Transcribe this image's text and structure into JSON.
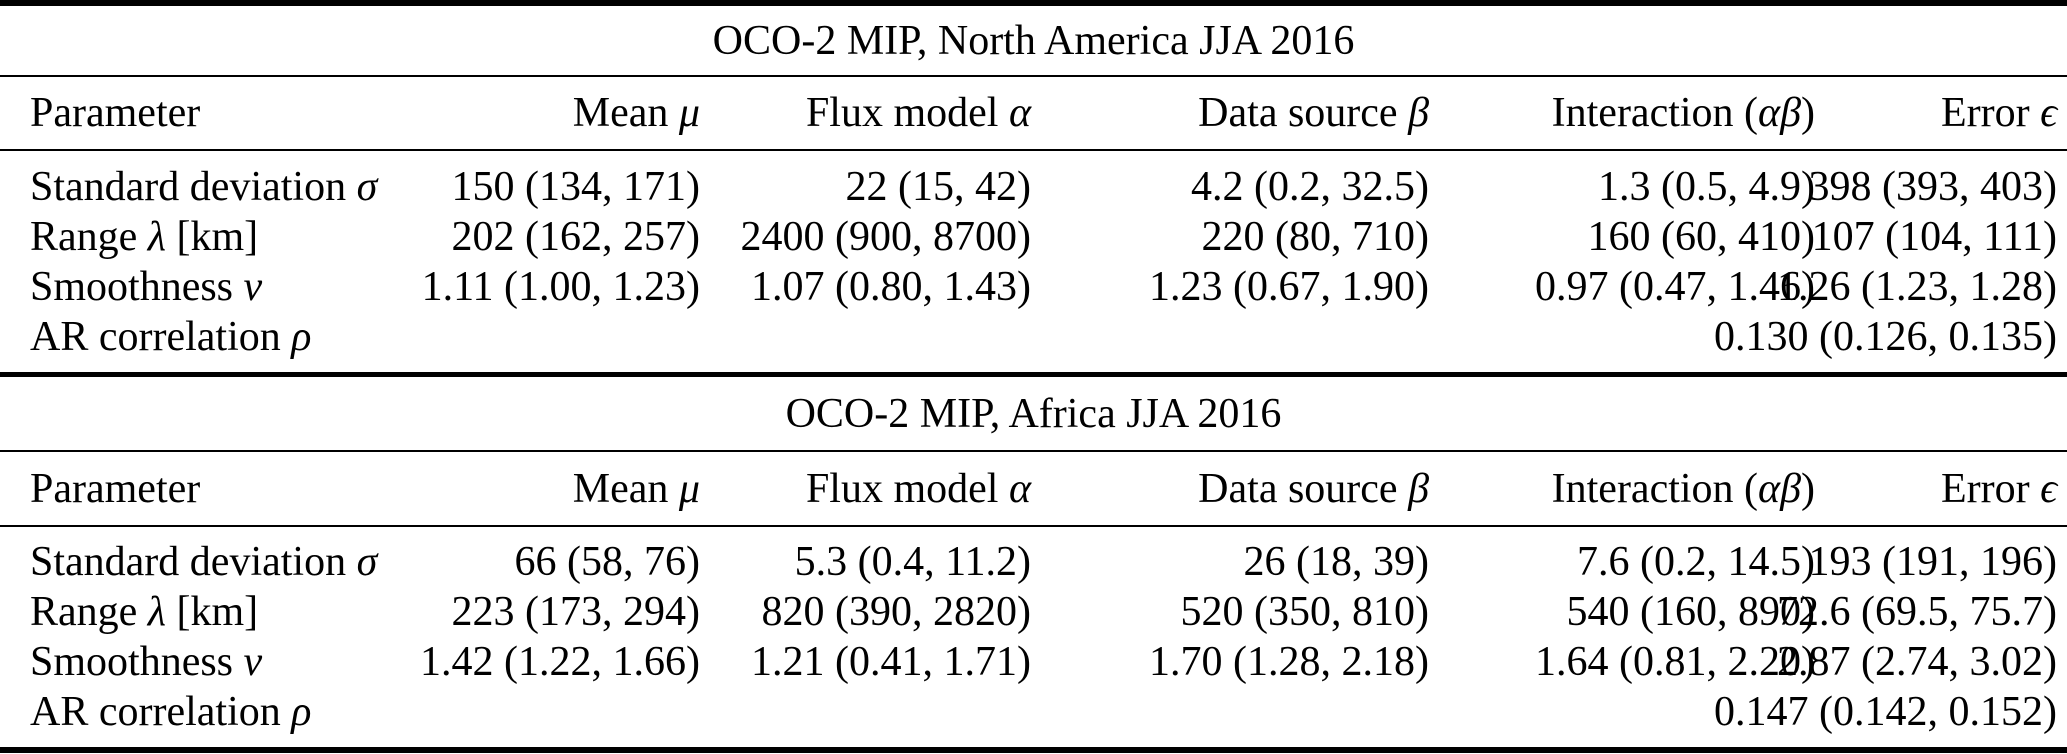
{
  "tables": [
    {
      "title": "OCO-2 MIP, North America JJA 2016",
      "columns": [
        {
          "pre": "Parameter",
          "sym": "",
          "post": ""
        },
        {
          "pre": "Mean ",
          "sym": "μ",
          "post": ""
        },
        {
          "pre": "Flux model ",
          "sym": "α",
          "post": ""
        },
        {
          "pre": "Data source ",
          "sym": "β",
          "post": ""
        },
        {
          "pre": "Interaction (",
          "sym": "αβ",
          "post": ")"
        },
        {
          "pre": "Error ",
          "sym": "ϵ",
          "post": ""
        }
      ],
      "rows": [
        {
          "label": {
            "pre": "Standard deviation ",
            "sym": "σ",
            "post": ""
          },
          "values": [
            "150 (134, 171)",
            "22 (15, 42)",
            "4.2 (0.2, 32.5)",
            "1.3 (0.5, 4.9)",
            "398 (393, 403)"
          ]
        },
        {
          "label": {
            "pre": "Range ",
            "sym": "λ",
            "post": " [km]"
          },
          "values": [
            "202 (162, 257)",
            "2400 (900, 8700)",
            "220 (80, 710)",
            "160 (60, 410)",
            "107 (104, 111)"
          ]
        },
        {
          "label": {
            "pre": "Smoothness ",
            "sym": "ν",
            "post": ""
          },
          "values": [
            "1.11 (1.00, 1.23)",
            "1.07 (0.80, 1.43)",
            "1.23 (0.67, 1.90)",
            "0.97 (0.47, 1.46)",
            "1.26 (1.23, 1.28)"
          ]
        },
        {
          "label": {
            "pre": "AR correlation ",
            "sym": "ρ",
            "post": ""
          },
          "values": [
            "",
            "",
            "",
            "",
            "0.130 (0.126, 0.135)"
          ]
        }
      ]
    },
    {
      "title": "OCO-2 MIP, Africa JJA 2016",
      "columns": [
        {
          "pre": "Parameter",
          "sym": "",
          "post": ""
        },
        {
          "pre": "Mean ",
          "sym": "μ",
          "post": ""
        },
        {
          "pre": "Flux model ",
          "sym": "α",
          "post": ""
        },
        {
          "pre": "Data source ",
          "sym": "β",
          "post": ""
        },
        {
          "pre": "Interaction (",
          "sym": "αβ",
          "post": ")"
        },
        {
          "pre": "Error ",
          "sym": "ϵ",
          "post": ""
        }
      ],
      "rows": [
        {
          "label": {
            "pre": "Standard deviation ",
            "sym": "σ",
            "post": ""
          },
          "values": [
            "66 (58, 76)",
            "5.3 (0.4, 11.2)",
            "26 (18, 39)",
            "7.6 (0.2, 14.5)",
            "193 (191, 196)"
          ]
        },
        {
          "label": {
            "pre": "Range ",
            "sym": "λ",
            "post": " [km]"
          },
          "values": [
            "223 (173, 294)",
            "820 (390, 2820)",
            "520 (350, 810)",
            "540 (160, 890)",
            "72.6 (69.5, 75.7)"
          ]
        },
        {
          "label": {
            "pre": "Smoothness ",
            "sym": "ν",
            "post": ""
          },
          "values": [
            "1.42 (1.22, 1.66)",
            "1.21 (0.41, 1.71)",
            "1.70 (1.28, 2.18)",
            "1.64 (0.81, 2.20)",
            "2.87 (2.74, 3.02)"
          ]
        },
        {
          "label": {
            "pre": "AR correlation ",
            "sym": "ρ",
            "post": ""
          },
          "values": [
            "",
            "",
            "",
            "",
            "0.147 (0.142, 0.152)"
          ]
        }
      ]
    }
  ]
}
